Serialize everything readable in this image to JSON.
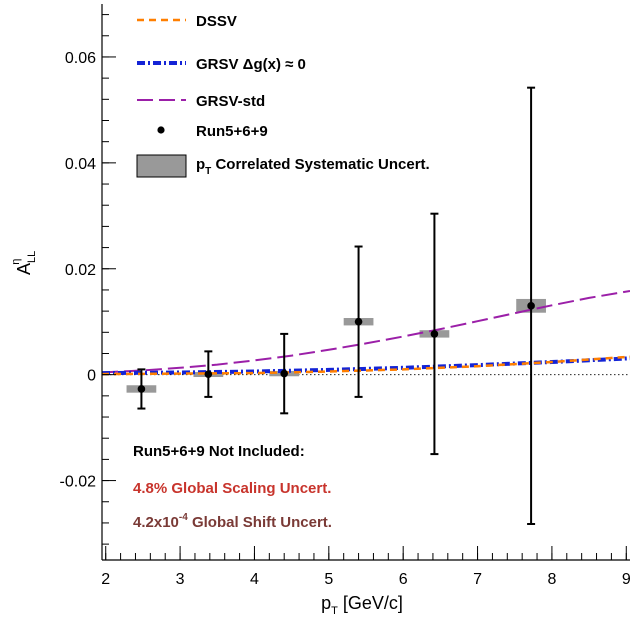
{
  "chart_data": {
    "type": "scatter",
    "xlabel": "p_T [GeV/c]",
    "xlabel_main": "p",
    "xlabel_sub": "T",
    "xlabel_rest": " [GeV/c]",
    "ylabel_main": "A",
    "ylabel_sub": "LL",
    "ylabel_sup": "η",
    "xlim": [
      1.95,
      9.05
    ],
    "ylim": [
      -0.035,
      0.07
    ],
    "x_ticks": [
      2,
      3,
      4,
      5,
      6,
      7,
      8,
      9
    ],
    "x_tick_labels": [
      "2",
      "3",
      "4",
      "5",
      "6",
      "7",
      "8",
      "9"
    ],
    "y_ticks": [
      -0.02,
      0,
      0.02,
      0.04,
      0.06
    ],
    "y_tick_labels": [
      "-0.02",
      "0",
      "0.02",
      "0.04",
      "0.06"
    ],
    "zero_line": true,
    "grid": false,
    "legend_position": "top-left",
    "legend": [
      {
        "label": "DSSV",
        "style": "orange-short-dash"
      },
      {
        "label": "GRSV Δg(x) ≈ 0",
        "style": "blue-dash-dot"
      },
      {
        "label": "GRSV-std",
        "style": "purple-long-dash"
      },
      {
        "label": "Run5+6+9",
        "style": "marker"
      },
      {
        "label_main": "p",
        "label_sub": "T",
        "label_rest": " Correlated Systematic Uncert.",
        "style": "box"
      }
    ],
    "points": [
      {
        "x": 2.48,
        "y": -0.0027,
        "err": 0.0037,
        "syst": 0.0007
      },
      {
        "x": 3.38,
        "y": 0.0001,
        "err": 0.0043,
        "syst": 0.0004
      },
      {
        "x": 4.4,
        "y": 0.0002,
        "err": 0.0075,
        "syst": 0.0005
      },
      {
        "x": 5.4,
        "y": 0.01,
        "err": 0.0142,
        "syst": 0.0007
      },
      {
        "x": 6.42,
        "y": 0.0077,
        "err": 0.0227,
        "syst": 0.0007
      },
      {
        "x": 7.72,
        "y": 0.013,
        "err": 0.0412,
        "syst": 0.0013
      }
    ],
    "series": [
      {
        "name": "GRSV-std",
        "color": "#9b1fa8",
        "x": [
          1.95,
          2.5,
          3,
          3.5,
          4,
          4.5,
          5,
          5.5,
          6,
          6.5,
          7,
          7.5,
          8,
          8.5,
          9.05
        ],
        "y": [
          0.0004,
          0.0008,
          0.0013,
          0.0019,
          0.0027,
          0.0036,
          0.0047,
          0.0059,
          0.0072,
          0.0086,
          0.0101,
          0.0116,
          0.0131,
          0.0145,
          0.0158
        ]
      },
      {
        "name": "GRSV Δg(x) ≈ 0",
        "color": "#1424d6",
        "x": [
          1.95,
          3,
          4,
          5,
          6,
          7,
          8,
          9.05
        ],
        "y": [
          0.0003,
          0.0004,
          0.0006,
          0.0009,
          0.0013,
          0.0018,
          0.0024,
          0.0031
        ]
      },
      {
        "name": "DSSV",
        "color": "#ff7f00",
        "x": [
          1.95,
          3,
          4,
          5,
          6,
          7,
          8,
          9.05
        ],
        "y": [
          0.0001,
          0.0002,
          0.0003,
          0.0006,
          0.001,
          0.0016,
          0.0024,
          0.0034
        ]
      }
    ],
    "notes": [
      {
        "text": "Run5+6+9 Not Included:",
        "color": "#000000"
      },
      {
        "text": "4.8% Global Scaling Uncert.",
        "color": "#c8342c"
      },
      {
        "text_main": "4.2x10",
        "text_sup": "-4",
        "text_rest": " Global Shift Uncert.",
        "color": "#7a3a36"
      }
    ]
  }
}
